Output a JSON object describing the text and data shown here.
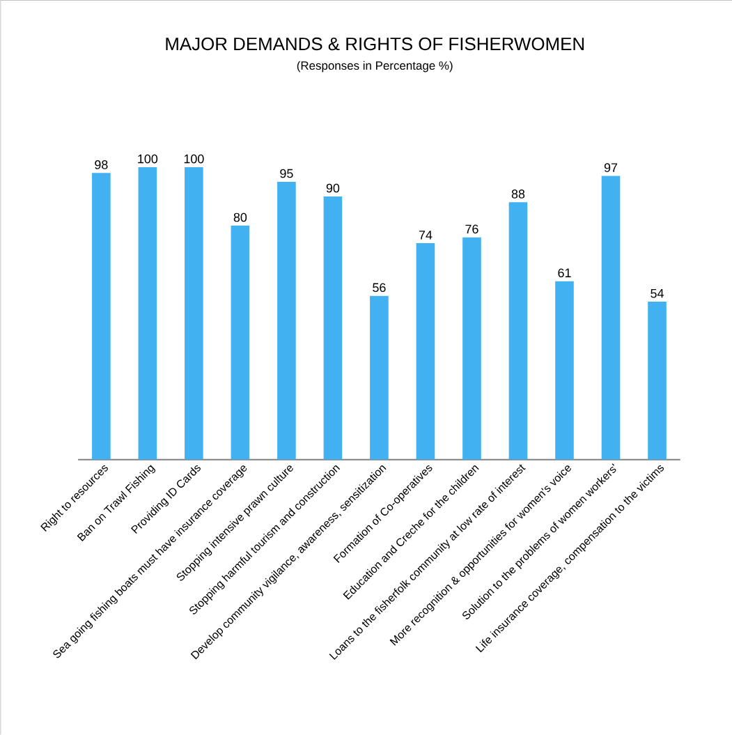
{
  "chart_data": {
    "type": "bar",
    "title": "MAJOR DEMANDS & RIGHTS OF FISHERWOMEN",
    "subtitle": "(Responses in Percentage %)",
    "categories": [
      "Right to resources",
      "Ban on Trawl Fishing",
      "Providing ID Cards",
      "Sea going fishing boats must have insurance coverage",
      "Stopping intensive prawn culture",
      "Stopping harmful tourism and construction",
      "Develop community vigilance, awareness, sensitization",
      "Formation of Co-operatives",
      "Education and Creche for the children",
      "Loans to the fisherfolk community at low rate of interest",
      "More recognition & opportunities for women's voice",
      "Solution to the problems of women workers'",
      "Life insurance coverage, compensation to the victims"
    ],
    "values": [
      98,
      100,
      100,
      80,
      95,
      90,
      56,
      74,
      76,
      88,
      61,
      97,
      54
    ],
    "color": "#42b1f2",
    "data_labels": true
  }
}
